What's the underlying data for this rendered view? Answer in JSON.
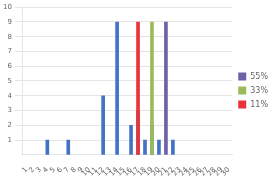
{
  "chart_data": {
    "type": "bar",
    "series": [
      {
        "color": "#4472c4",
        "x": [
          4,
          7,
          12,
          14,
          16,
          17,
          18,
          19,
          20,
          22
        ],
        "values": [
          1,
          1,
          4,
          9,
          2,
          3,
          1,
          2,
          1,
          1
        ]
      },
      {
        "name": "11%",
        "color": "#e8333b",
        "x": [
          17
        ],
        "values": [
          9
        ]
      },
      {
        "name": "33%",
        "color": "#9bbb59",
        "x": [
          19
        ],
        "values": [
          9
        ]
      },
      {
        "name": "55%",
        "color": "#7060a8",
        "x": [
          21
        ],
        "values": [
          9
        ]
      }
    ],
    "xlim": [
      0.5,
      30.5
    ],
    "xticks": [
      1,
      2,
      3,
      4,
      5,
      6,
      7,
      8,
      9,
      10,
      11,
      12,
      13,
      14,
      15,
      16,
      17,
      18,
      19,
      20,
      21,
      22,
      23,
      24,
      25,
      26,
      27,
      28,
      29,
      30
    ],
    "ylim": [
      0,
      10
    ],
    "yticks": [
      1,
      2,
      3,
      4,
      5,
      6,
      7,
      8,
      9,
      10
    ],
    "grid": "y",
    "legend": "right"
  }
}
